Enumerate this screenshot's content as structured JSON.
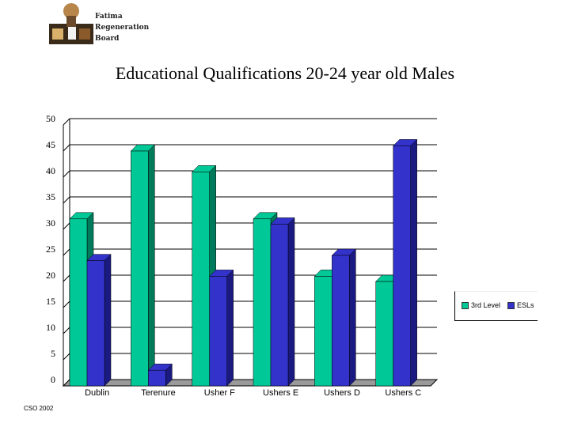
{
  "logo": {
    "lines": [
      "Fatima",
      "Regeneration",
      "Board"
    ]
  },
  "footer": "CSO 2002",
  "colors": {
    "series1": "#00c896",
    "series1_side": "#007a5a",
    "series2": "#3333cc",
    "series2_side": "#1a1a80",
    "grid": "#000000"
  },
  "chart_data": {
    "type": "bar",
    "title": "Educational Qualifications 20-24 year old Males",
    "xlabel": "",
    "ylabel": "",
    "ylim": [
      0,
      50
    ],
    "yticks": [
      0,
      5,
      10,
      15,
      20,
      25,
      30,
      35,
      40,
      45,
      50
    ],
    "grid": true,
    "legend_position": "right",
    "categories": [
      "Dublin",
      "Terenure",
      "Usher F",
      "Ushers E",
      "Ushers D",
      "Ushers C"
    ],
    "series": [
      {
        "name": "3rd Level",
        "values": [
          32,
          45,
          41,
          32,
          21,
          20
        ]
      },
      {
        "name": "ESLs",
        "values": [
          24,
          3,
          21,
          31,
          25,
          46
        ]
      }
    ]
  }
}
